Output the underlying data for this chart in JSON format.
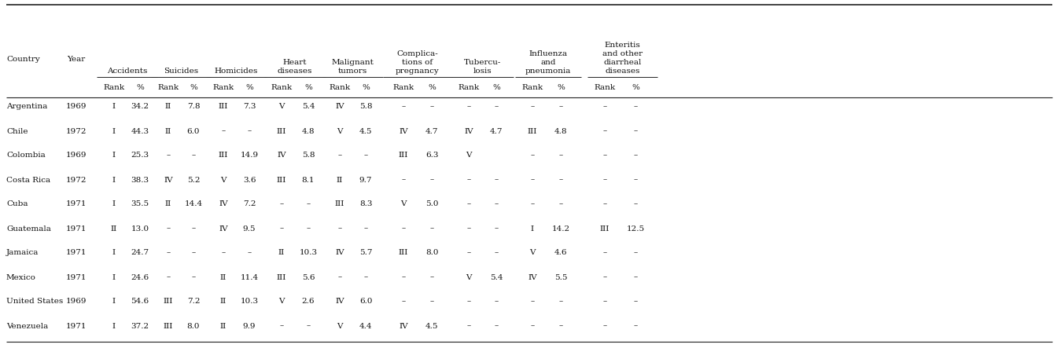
{
  "rows": [
    [
      "Argentina",
      "1969",
      "I",
      "34.2",
      "II",
      "7.8",
      "III",
      "7.3",
      "V",
      "5.4",
      "IV",
      "5.8",
      "–",
      "–",
      "–",
      "–",
      "–",
      "–",
      "–",
      "–"
    ],
    [
      "Chile",
      "1972",
      "I",
      "44.3",
      "II",
      "6.0",
      "–",
      "–",
      "III",
      "4.8",
      "V",
      "4.5",
      "IV",
      "4.7",
      "IV",
      "4.7",
      "III",
      "4.8",
      "–",
      "–"
    ],
    [
      "Colombia",
      "1969",
      "I",
      "25.3",
      "–",
      "–",
      "III",
      "14.9",
      "IV",
      "5.8",
      "–",
      "–",
      "III",
      "6.3",
      "V",
      "",
      "–",
      "–",
      "–",
      "–"
    ],
    [
      "Costa Rica",
      "1972",
      "I",
      "38.3",
      "IV",
      "5.2",
      "V",
      "3.6",
      "III",
      "8.1",
      "II",
      "9.7",
      "–",
      "–",
      "–",
      "–",
      "–",
      "–",
      "–",
      "–"
    ],
    [
      "Cuba",
      "1971",
      "I",
      "35.5",
      "II",
      "14.4",
      "IV",
      "7.2",
      "–",
      "–",
      "III",
      "8.3",
      "V",
      "5.0",
      "–",
      "–",
      "–",
      "–",
      "–",
      "–"
    ],
    [
      "Guatemala",
      "1971",
      "II",
      "13.0",
      "–",
      "–",
      "IV",
      "9.5",
      "–",
      "–",
      "–",
      "–",
      "–",
      "–",
      "–",
      "–",
      "I",
      "14.2",
      "III",
      "12.5"
    ],
    [
      "Jamaica",
      "1971",
      "I",
      "24.7",
      "–",
      "–",
      "–",
      "–",
      "II",
      "10.3",
      "IV",
      "5.7",
      "III",
      "8.0",
      "–",
      "–",
      "V",
      "4.6",
      "–",
      "–"
    ],
    [
      "Mexico",
      "1971",
      "I",
      "24.6",
      "–",
      "–",
      "II",
      "11.4",
      "III",
      "5.6",
      "–",
      "–",
      "–",
      "–",
      "V",
      "5.4",
      "IV",
      "5.5",
      "–",
      "–"
    ],
    [
      "United States",
      "1969",
      "I",
      "54.6",
      "III",
      "7.2",
      "II",
      "10.3",
      "V",
      "2.6",
      "IV",
      "6.0",
      "–",
      "–",
      "–",
      "–",
      "–",
      "–",
      "–",
      "–"
    ],
    [
      "Venezuela",
      "1971",
      "I",
      "37.2",
      "III",
      "8.0",
      "II",
      "9.9",
      "–",
      "–",
      "V",
      "4.4",
      "IV",
      "4.5",
      "–",
      "–",
      "–",
      "–",
      "–",
      "–"
    ]
  ],
  "bg_color": "#ffffff",
  "text_color": "#111111",
  "line_color": "#222222",
  "fontsize": 7.5
}
